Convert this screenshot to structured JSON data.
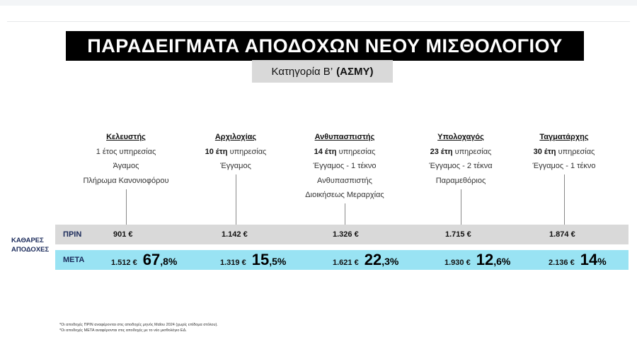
{
  "title": "ΠΑΡΑΔΕΙΓΜΑΤΑ ΑΠΟΔΟΧΩΝ ΝΕΟΥ ΜΙΣΘΟΛΟΓΙΟΥ",
  "subtitle": {
    "prefix": "Κατηγορία Β’",
    "code": "(ΑΣΜΥ)"
  },
  "net_pay_label": "ΚΑΘΑΡΕΣ ΑΠΟΔΟΧΕΣ",
  "rows": {
    "before_label": "ΠΡΙΝ",
    "after_label": "ΜΕΤΑ"
  },
  "profiles": [
    {
      "rank": "Κελευστής",
      "years_bold": "",
      "years_text": "1 έτος υπηρεσίας",
      "family": "Άγαμος",
      "extra1": "Πλήρωμα Κανονιοφόρου",
      "extra2": "",
      "before": "901 €",
      "after": "1.512 €",
      "pct_main": "67",
      "pct_tail": ",8%"
    },
    {
      "rank": "Αρχιλοχίας",
      "years_bold": "10 έτη",
      "years_text": " υπηρεσίας",
      "family": "Έγγαμος",
      "extra1": "",
      "extra2": "",
      "before": "1.142 €",
      "after": "1.319 €",
      "pct_main": "15",
      "pct_tail": ",5%"
    },
    {
      "rank": "Ανθυπασπιστής",
      "years_bold": "14 έτη",
      "years_text": " υπηρεσίας",
      "family": "Έγγαμος - 1 τέκνο",
      "extra1": "Ανθυπασπιστής",
      "extra2": "Διοικήσεως Μεραρχίας",
      "before": "1.326 €",
      "after": "1.621 €",
      "pct_main": "22",
      "pct_tail": ",3%"
    },
    {
      "rank": "Υπολοχαγός",
      "years_bold": "23 έτη",
      "years_text": " υπηρεσίας",
      "family": "Έγγαμος - 2 τέκνα",
      "extra1": "Παραμεθόριος",
      "extra2": "",
      "before": "1.715 €",
      "after": "1.930 €",
      "pct_main": "12",
      "pct_tail": ",6%"
    },
    {
      "rank": "Ταγματάρχης",
      "years_bold": "30 έτη",
      "years_text": " υπηρεσίας",
      "family": "Έγγαμος - 1 τέκνο",
      "extra1": "",
      "extra2": "",
      "before": "1.874 €",
      "after": "2.136 €",
      "pct_main": "14",
      "pct_tail": "%"
    }
  ],
  "footnotes": [
    "*Οι αποδοχές ΠΡΙΝ αναφέρονται στις αποδοχές μηνός Μαΐου 2024 (χωρίς επίδομα στόλου).",
    "*Οι αποδοχές ΜΕΤΑ αναφέρονται στις αποδοχές με το νέο μισθολόγιο ΕΔ."
  ]
}
